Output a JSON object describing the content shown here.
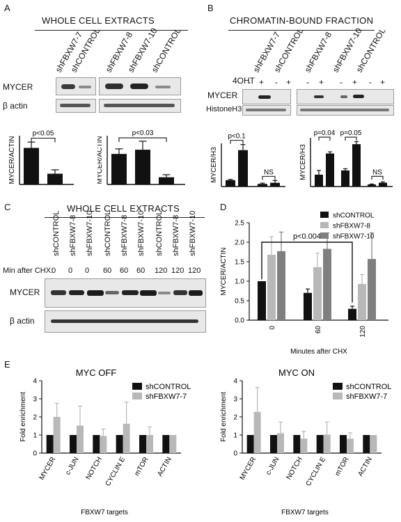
{
  "panels": {
    "A": {
      "letter": "A",
      "title": "WHOLE CELL EXTRACTS",
      "lanes": [
        "shFBXW7-7",
        "shCONTROL",
        "shFBXW7-8",
        "shFBXW7-10",
        "shCONTROL"
      ],
      "rows": [
        "MYCER",
        "β actin"
      ]
    },
    "B": {
      "letter": "B",
      "title": "CHROMATIN-BOUND  FRACTION",
      "lanes": [
        "shFBXW7-7",
        "shCONTROL",
        "shFBXW7-8",
        "shFBXW7-10",
        "shCONTROL"
      ],
      "treatment_label": "4OHT",
      "treatment_signs": [
        "-",
        "+",
        "-",
        "+",
        "-",
        "+",
        "-",
        "+",
        "-",
        "+"
      ],
      "rows": [
        "MYCER",
        "HistoneH3"
      ]
    },
    "C": {
      "letter": "C",
      "title": "WHOLE CELL EXTRACTS",
      "lanes": [
        "shCONTROL",
        "shFBXW7-8",
        "shFBXW7-10",
        "shCONTROL",
        "shFBXW7-8",
        "shFBXW7-10",
        "shCONTROL",
        "shFBXW7-8",
        "shFBXW7-10"
      ],
      "time_label": "Min after CHX:",
      "times": [
        "0",
        "0",
        "0",
        "60",
        "60",
        "60",
        "120",
        "120",
        "120"
      ],
      "rows": [
        "MYCER",
        "β actin"
      ]
    },
    "D": {
      "letter": "D"
    },
    "E": {
      "letter": "E"
    }
  },
  "chart_data": [
    {
      "id": "A-left",
      "type": "bar",
      "ylabel": "MYCER/ACTIN",
      "categories": [
        "shFBXW7-7",
        "shCONTROL"
      ],
      "values": [
        0.75,
        0.22
      ],
      "errors": [
        0.12,
        0.08
      ],
      "annotations": [
        {
          "text": "p<0.05",
          "between": [
            0,
            1
          ]
        }
      ]
    },
    {
      "id": "A-right",
      "type": "bar",
      "ylabel": "MYCER/ACTIN",
      "categories": [
        "shFBXW7-8",
        "shFBXW7-10",
        "shCONTROL"
      ],
      "values": [
        0.72,
        0.82,
        0.17
      ],
      "errors": [
        0.12,
        0.2,
        0.06
      ],
      "annotations": [
        {
          "text": "p<0.03",
          "between": [
            0,
            2
          ]
        }
      ]
    },
    {
      "id": "B-left",
      "type": "bar",
      "ylabel": "MYCER/H3",
      "groups": [
        "shFBXW7-7",
        "shCONTROL"
      ],
      "treatment": [
        "-",
        "+",
        "-",
        "+"
      ],
      "values": [
        0.17,
        0.97,
        0.07,
        0.1
      ],
      "errors": [
        0.02,
        0.15,
        0.02,
        0.06
      ],
      "annotations": [
        {
          "text": "p<0.1",
          "group": 0
        },
        {
          "text": "NS",
          "group": 1
        }
      ]
    },
    {
      "id": "B-right",
      "type": "bar",
      "ylabel": "MYCER/H3",
      "groups": [
        "shFBXW7-8",
        "shFBXW7-10",
        "shCONTROL"
      ],
      "treatment": [
        "-",
        "+",
        "-",
        "+",
        "-",
        "+"
      ],
      "values": [
        0.28,
        0.78,
        0.38,
        1.0,
        0.05,
        0.09
      ],
      "errors": [
        0.1,
        0.04,
        0.04,
        0.06,
        0.01,
        0.02
      ],
      "annotations": [
        {
          "text": "p=0.04",
          "group": 0
        },
        {
          "text": "p=0.05",
          "group": 1
        },
        {
          "text": "NS",
          "group": 2
        }
      ]
    },
    {
      "id": "D",
      "type": "bar",
      "xlabel": "Minutes after CHX",
      "ylabel": "MYCER/ACTIN",
      "categories": [
        "0",
        "60",
        "120"
      ],
      "ylim": [
        0,
        2.5
      ],
      "yticks": [
        "0.0",
        "0.5",
        "1.0",
        "1.5",
        "2.0",
        "2.5"
      ],
      "series": [
        {
          "name": "shCONTROL",
          "color": "#111111",
          "values": [
            1.0,
            0.7,
            0.29
          ],
          "errors": [
            0.0,
            0.1,
            0.07
          ]
        },
        {
          "name": "shFBXW7-8",
          "color": "#b8b8b8",
          "values": [
            1.68,
            1.36,
            0.93
          ],
          "errors": [
            0.46,
            0.36,
            0.24
          ]
        },
        {
          "name": "shFBXW7-10",
          "color": "#7f7f7f",
          "values": [
            1.77,
            1.83,
            1.57
          ],
          "errors": [
            0.49,
            0.41,
            0.67
          ]
        }
      ],
      "annotations": [
        {
          "text": "p<0.004",
          "between": [
            "0",
            "120"
          ]
        }
      ]
    },
    {
      "id": "E-left",
      "type": "bar",
      "title": "MYC OFF",
      "xlabel": "FBXW7 targets",
      "ylabel": "Fold enrichment",
      "categories": [
        "MYCER",
        "c-JUN",
        "NOTCH",
        "CYCLIN E",
        "mTOR",
        "ACTIN"
      ],
      "ylim": [
        0,
        4
      ],
      "yticks": [
        "0",
        "1",
        "2",
        "3",
        "4"
      ],
      "series": [
        {
          "name": "shCONTROL",
          "color": "#111111",
          "values": [
            1,
            1,
            1,
            1,
            1,
            1
          ]
        },
        {
          "name": "shFBXW7-7",
          "color": "#b8b8b8",
          "values": [
            2.0,
            1.52,
            0.95,
            1.62,
            1.0,
            1.0
          ],
          "errors": [
            0.75,
            1.08,
            0.38,
            1.2,
            0.45,
            0.0
          ]
        }
      ]
    },
    {
      "id": "E-right",
      "type": "bar",
      "title": "MYC ON",
      "xlabel": "FBXW7 targets",
      "ylabel": "Fold enrichment",
      "categories": [
        "MYCER",
        "c-JUN",
        "NOTCH",
        "CYCLIN E",
        "mTOR",
        "ACTIN"
      ],
      "ylim": [
        0,
        4
      ],
      "yticks": [
        "0",
        "1",
        "2",
        "3",
        "4"
      ],
      "series": [
        {
          "name": "shCONTROL",
          "color": "#111111",
          "values": [
            1,
            1,
            1,
            1,
            1,
            1
          ]
        },
        {
          "name": "shFBXW7-7",
          "color": "#b8b8b8",
          "values": [
            2.28,
            1.1,
            0.8,
            1.02,
            0.8,
            1.0
          ],
          "errors": [
            1.35,
            0.62,
            0.4,
            0.7,
            0.32,
            0.0
          ]
        }
      ]
    }
  ]
}
